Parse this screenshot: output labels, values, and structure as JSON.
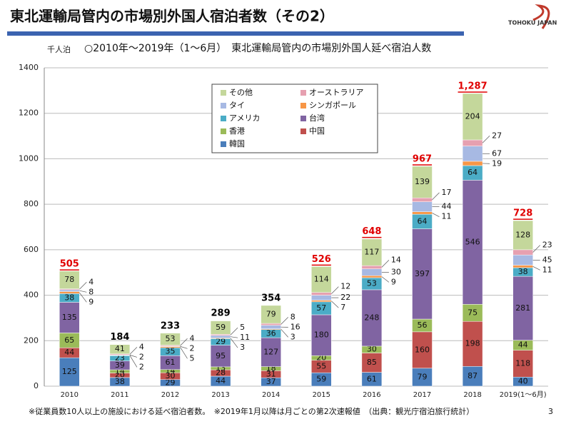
{
  "header": {
    "title": "東北運輸局管内の市場別外国人宿泊者数（その2）",
    "logo": "TOHOKU JAPAN"
  },
  "chart_data": {
    "type": "bar",
    "stacked": true,
    "unit_label": "千人泊",
    "title": "○2010年～2019年（1～6月）　東北運輸局管内の市場別外国人延べ宿泊人数",
    "categories": [
      "2010",
      "2011",
      "2012",
      "2013",
      "2014",
      "2015",
      "2016",
      "2017",
      "2018",
      "2019(1～6月)"
    ],
    "series": [
      {
        "name": "韓国",
        "color": "#4a7ebb",
        "values": [
          125,
          38,
          29,
          44,
          37,
          59,
          61,
          79,
          87,
          40
        ]
      },
      {
        "name": "中国",
        "color": "#c0504d",
        "values": [
          44,
          20,
          30,
          28,
          31,
          55,
          85,
          160,
          198,
          118
        ]
      },
      {
        "name": "香港",
        "color": "#9bbb59",
        "values": [
          65,
          14,
          14,
          13,
          18,
          20,
          30,
          56,
          75,
          44
        ]
      },
      {
        "name": "台湾",
        "color": "#8064a2",
        "values": [
          135,
          39,
          61,
          95,
          127,
          180,
          248,
          397,
          546,
          281
        ]
      },
      {
        "name": "アメリカ",
        "color": "#4bacc6",
        "values": [
          38,
          23,
          35,
          29,
          36,
          57,
          53,
          64,
          64,
          38
        ]
      },
      {
        "name": "シンガポール",
        "color": "#f79646",
        "values": [
          9,
          2,
          5,
          3,
          3,
          7,
          9,
          11,
          19,
          11
        ]
      },
      {
        "name": "タイ",
        "color": "#a7b9e3",
        "values": [
          8,
          2,
          2,
          11,
          16,
          22,
          30,
          44,
          67,
          45
        ]
      },
      {
        "name": "オーストラリア",
        "color": "#e6a0b0",
        "values": [
          4,
          4,
          4,
          5,
          8,
          12,
          14,
          17,
          27,
          23
        ]
      },
      {
        "name": "その他",
        "color": "#c4d79b",
        "values": [
          78,
          41,
          53,
          59,
          79,
          114,
          117,
          139,
          204,
          128
        ]
      }
    ],
    "totals": {
      "values": [
        505,
        184,
        233,
        289,
        354,
        526,
        648,
        967,
        1287,
        728
      ],
      "value_labels": [
        "505",
        "184",
        "233",
        "289",
        "354",
        "526",
        "648",
        "967",
        "1,287",
        "728"
      ],
      "colors": [
        "#e00000",
        "#000000",
        "#000000",
        "#000000",
        "#000000",
        "#e00000",
        "#e00000",
        "#e00000",
        "#e00000",
        "#e00000"
      ]
    },
    "ylim": [
      0,
      1400
    ],
    "yticks": [
      0,
      200,
      400,
      600,
      800,
      1000,
      1200,
      1400
    ],
    "grid": true,
    "legend": "top"
  },
  "footnote": "※従業員数10人以上の施設における延べ宿泊者数。　※2019年1月以降は月ごとの第2次速報値　（出典：観光庁宿泊旅行統計）",
  "page_number": "3"
}
